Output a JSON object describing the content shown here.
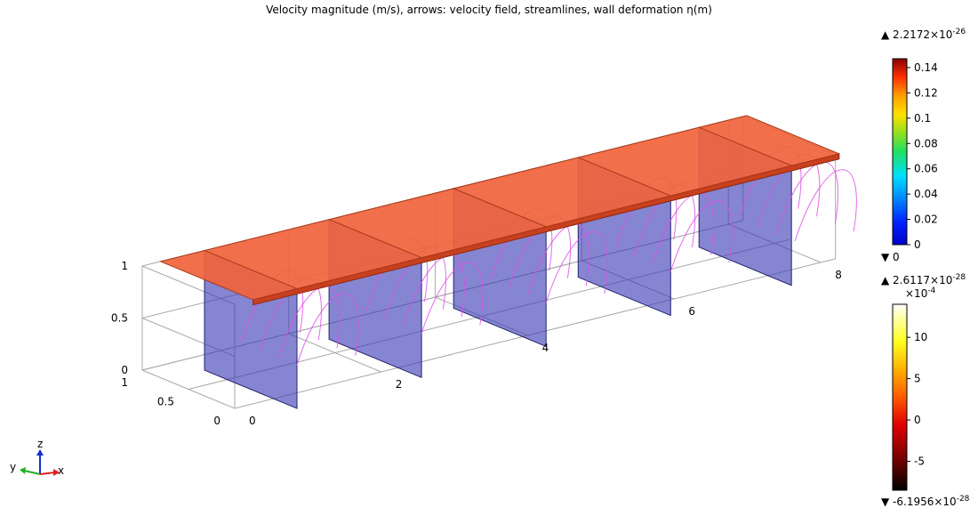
{
  "title": "Velocity magnitude (m/s), arrows: velocity field, streamlines, wall deformation η(m)",
  "chart_data": {
    "type": "3d-surface-plot",
    "title": "Velocity magnitude (m/s), arrows: velocity field, streamlines, wall deformation η(m)",
    "axes": {
      "x": {
        "label": "x",
        "ticks": [
          "0",
          "2",
          "4",
          "6",
          "8"
        ],
        "range": [
          0,
          8
        ]
      },
      "y": {
        "label": "y",
        "ticks": [
          "1",
          "0.5",
          "0"
        ],
        "range": [
          0,
          1
        ]
      },
      "z": {
        "label": "z",
        "ticks": [
          "1",
          "0.5",
          "0"
        ],
        "range": [
          0,
          1
        ]
      }
    },
    "grid": true,
    "surfaces": [
      {
        "name": "top wall",
        "color": "#f0643c",
        "description_value": "velocity magnitude"
      },
      {
        "name": "baffle plates",
        "count": 5,
        "color": "#3c3cb4"
      }
    ],
    "streamline_color": "#e050e8",
    "colorbars": [
      {
        "quantity": "velocity magnitude",
        "max_label": "2.2172×10",
        "max_exp": "-26",
        "min_label": "0",
        "ticks": [
          "0.14",
          "0.12",
          "0.1",
          "0.08",
          "0.06",
          "0.04",
          "0.02",
          "0"
        ],
        "range": [
          0,
          0.147
        ],
        "colormap": "rainbow"
      },
      {
        "quantity": "wall deformation η",
        "max_label": "2.6117×10",
        "max_exp": "-28",
        "min_label": "-6.1956×10",
        "min_exp": "-28",
        "multiplier": "×10",
        "multiplier_exp": "-4",
        "ticks": [
          "10",
          "5",
          "0",
          "-5"
        ],
        "range": [
          -8.5,
          14
        ],
        "colormap": "thermal"
      }
    ]
  },
  "triad": {
    "x": "x",
    "y": "y",
    "z": "z"
  }
}
